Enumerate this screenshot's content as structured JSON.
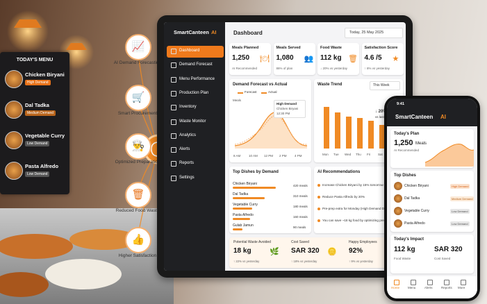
{
  "menu_board": {
    "title": "TODAY'S MENU",
    "items": [
      {
        "name": "Chicken Biryani",
        "tag": "High Demand"
      },
      {
        "name": "Dal Tadka",
        "tag": "Medium Demand"
      },
      {
        "name": "Vegetable Curry",
        "tag": "Low Demand"
      },
      {
        "name": "Pasta Alfredo",
        "tag": "Low Demand"
      }
    ]
  },
  "features": [
    "AI Demand Forecasting",
    "Smart Procurement",
    "Optimized Preparation",
    "Reduced Food Waste",
    "Higher Satisfaction"
  ],
  "tablet": {
    "brand": "SmartCanteen",
    "brand_ai": "AI",
    "nav": [
      "Dashboard",
      "Demand Forecast",
      "Menu Performance",
      "Production Plan",
      "Inventory",
      "Waste Monitor",
      "Analytics",
      "Alerts",
      "Reports",
      "Settings"
    ],
    "header": {
      "title": "Dashboard",
      "date": "Today, 25 May 2025"
    },
    "kpis": [
      {
        "label": "Meals Planned",
        "value": "1,250",
        "note": "AI Recommended"
      },
      {
        "label": "Meals Served",
        "value": "1,080",
        "note": "86% of plan"
      },
      {
        "label": "Food Waste",
        "value": "112 kg",
        "note": "↓ 20% vs yesterday"
      },
      {
        "label": "Satisfaction Score",
        "value": "4.6 /5",
        "note": "↑ 8% vs yesterday"
      }
    ],
    "forecast": {
      "title": "Demand Forecast vs Actual",
      "legend": [
        "Forecast",
        "Actual"
      ],
      "y_label": "Meals",
      "x_labels": [
        "8 AM",
        "10 AM",
        "12 PM",
        "2 PM",
        "4 PM"
      ],
      "callout": [
        "High Demand",
        "Chicken Biryani",
        "12:30 PM"
      ]
    },
    "waste": {
      "title": "Waste Trend",
      "period": "This Week",
      "x_labels": [
        "Mon",
        "Tue",
        "Wed",
        "Thu",
        "Fri",
        "Sat",
        "Sun"
      ],
      "callout": [
        "↓ 20%",
        "vs last week"
      ]
    },
    "top_dishes": {
      "title": "Top Dishes by Demand",
      "rows": [
        [
          "Chicken Biryani",
          "420 meals"
        ],
        [
          "Dal Tadka",
          "310 meals"
        ],
        [
          "Vegetable Curry",
          "180 meals"
        ],
        [
          "Pasta Alfredo",
          "160 meals"
        ],
        [
          "Gulab Jamun",
          "90 meals"
        ]
      ]
    },
    "recommendations": {
      "title": "AI Recommendations",
      "items": [
        "Increase Chicken Biryani by 15% tomorrow",
        "Reduce Pasta Alfredo by 20%",
        "Pre-prep extra for Monday (High Demand Day)",
        "You can save ~18 kg food by optimizing prep"
      ]
    },
    "footer": [
      {
        "label": "Potential Waste Avoided",
        "value": "18 kg",
        "note": "↑ 22% vs yesterday"
      },
      {
        "label": "Cost Saved",
        "value": "SAR 320",
        "note": "↑ 18% vs yesterday"
      },
      {
        "label": "Happy Employees",
        "value": "92%",
        "note": "↑ 9% vs yesterday"
      }
    ]
  },
  "phone": {
    "time": "9:41",
    "brand": "SmartCanteen",
    "brand_ai": "AI",
    "plan": {
      "title": "Today's Plan",
      "value": "1,250",
      "unit": "Meals",
      "note": "AI Recommended"
    },
    "dishes_title": "Top Dishes",
    "dishes": [
      [
        "Chicken Biryani",
        "High Demand"
      ],
      [
        "Dal Tadka",
        "Medium Demand"
      ],
      [
        "Vegetable Curry",
        "Low Demand"
      ],
      [
        "Pasta Alfredo",
        "Low Demand"
      ]
    ],
    "impact": {
      "title": "Today's Impact",
      "items": [
        [
          "112 kg",
          "Food Waste"
        ],
        [
          "SAR 320",
          "Cost Saved"
        ]
      ]
    },
    "tabs": [
      "Home",
      "Menu",
      "Alerts",
      "Reports",
      "More"
    ]
  }
}
